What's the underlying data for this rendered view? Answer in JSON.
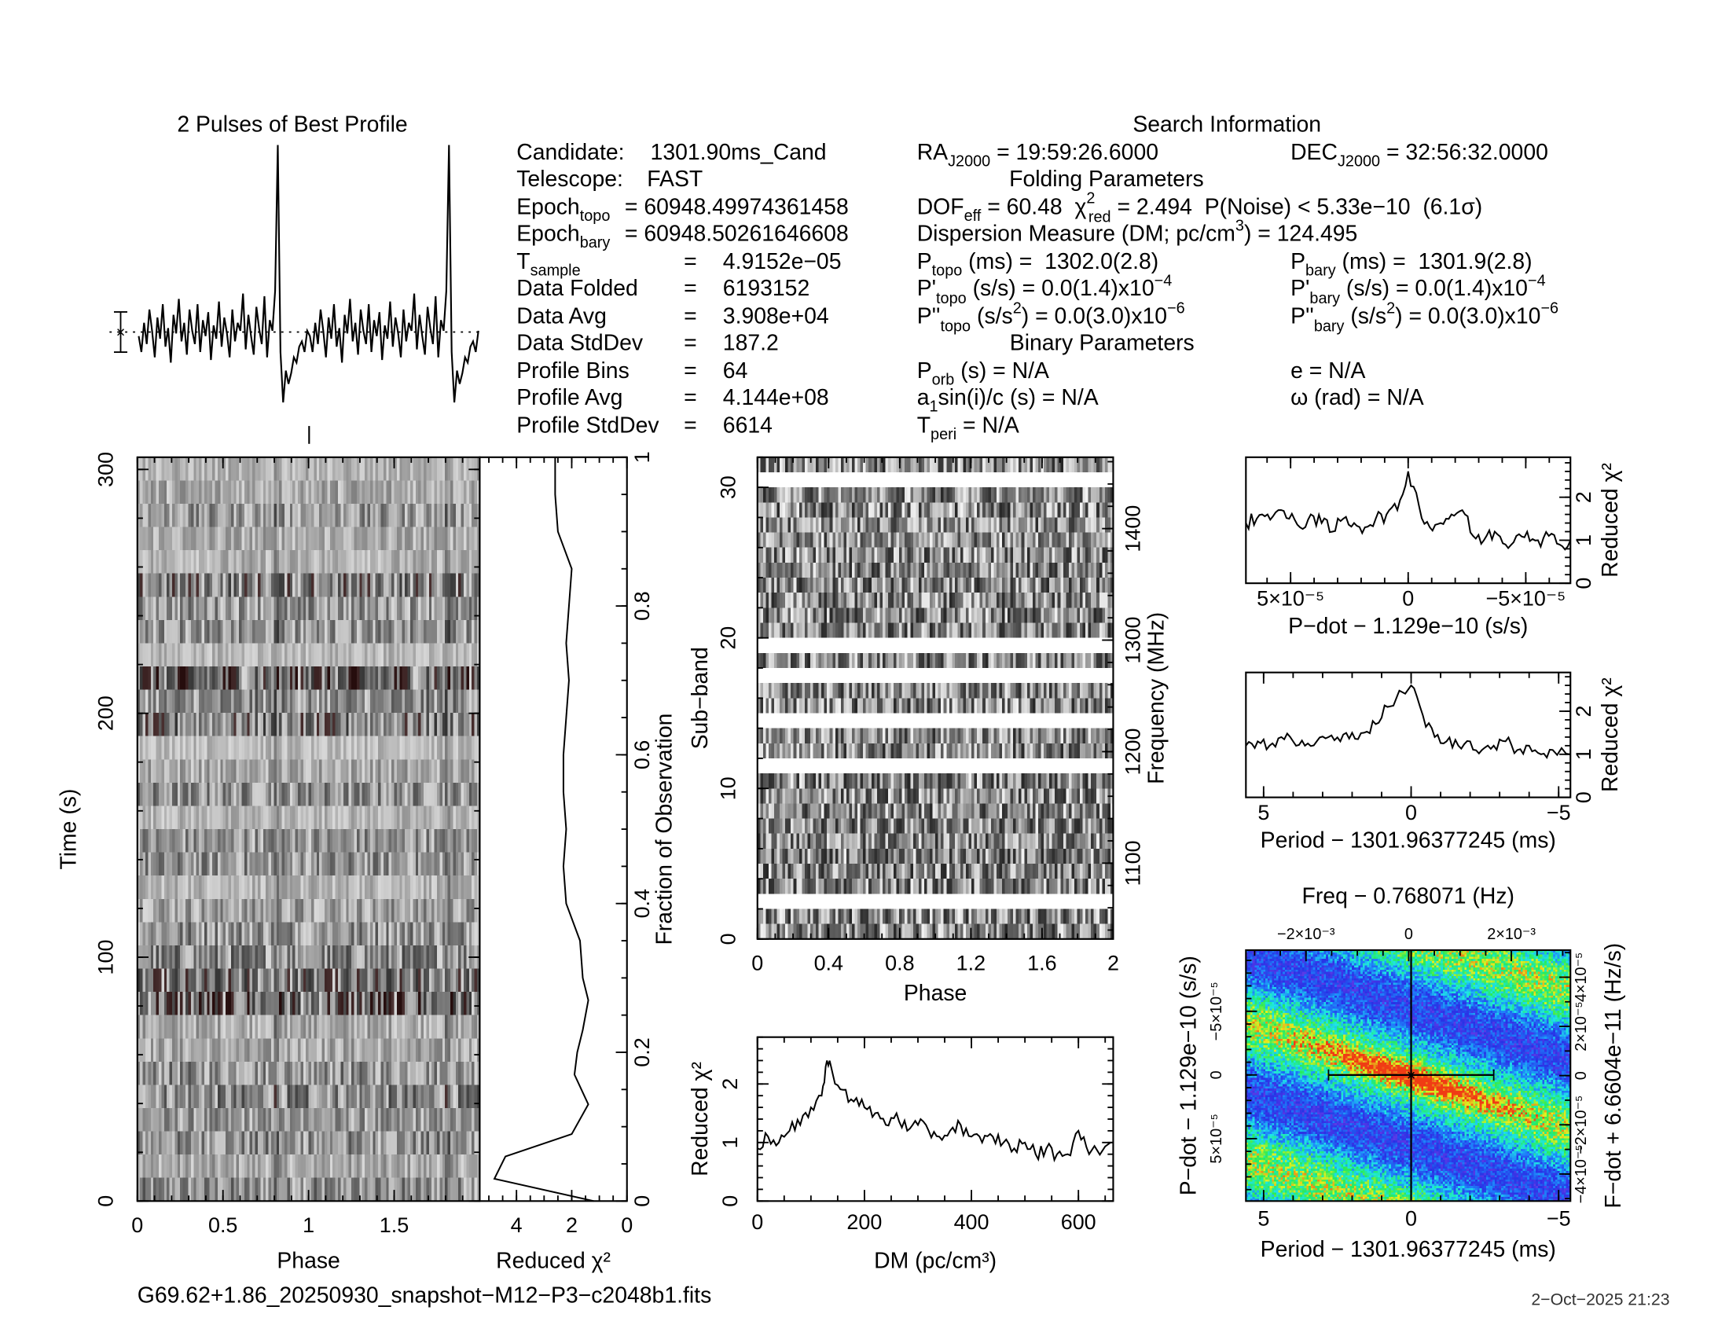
{
  "info": {
    "title": "Search Information",
    "folding_title": "Folding Parameters",
    "binary_title": "Binary Parameters",
    "col1": [
      {
        "label": "Candidate:",
        "sub": "",
        "eq": "",
        "value": "1301.90ms_Cand"
      },
      {
        "label": "Telescope:",
        "sub": "",
        "eq": "",
        "value": "FAST"
      },
      {
        "label": "Epoch",
        "sub": "topo",
        "eq": "",
        "value": "= 60948.49974361458"
      },
      {
        "label": "Epoch",
        "sub": "bary",
        "eq": "",
        "value": "= 60948.50261646608"
      },
      {
        "label": "T",
        "sub": "sample",
        "eq": "=",
        "value": "4.9152e−05"
      },
      {
        "label": "Data Folded",
        "sub": "",
        "eq": "=",
        "value": "6193152"
      },
      {
        "label": "Data Avg",
        "sub": "",
        "eq": "=",
        "value": "3.908e+04"
      },
      {
        "label": "Data StdDev",
        "sub": "",
        "eq": "=",
        "value": "187.2"
      },
      {
        "label": "Profile Bins",
        "sub": "",
        "eq": "=",
        "value": "64"
      },
      {
        "label": "Profile Avg",
        "sub": "",
        "eq": "=",
        "value": "4.144e+08"
      },
      {
        "label": "Profile StdDev",
        "sub": "",
        "eq": "=",
        "value": "6614"
      }
    ],
    "ra": {
      "label": "RA",
      "sub": "J2000",
      "value": " = 19:59:26.6000"
    },
    "dec": {
      "label": "DEC",
      "sub": "J2000",
      "value": " = 32:56:32.0000"
    },
    "dof": {
      "label": "DOF",
      "sub": "eff",
      "value": " = 60.48  ",
      "chi": "χ",
      "chi_sup": "2",
      "chi_sub": "red",
      "chi_value": " = 2.494  P(Noise) < 5.33e−10  (6.1σ)"
    },
    "dm": {
      "label": "Dispersion Measure (DM; pc/cm",
      "sup": "3",
      "value": ") = 124.495"
    },
    "p_topo": {
      "label": "P",
      "sub": "topo",
      "value": " (ms) =  1302.0(2.8)"
    },
    "p_bary": {
      "label": "P",
      "sub": "bary",
      "value": " (ms) =  1301.9(2.8)"
    },
    "pd_topo": {
      "label": "P'",
      "sub": "topo",
      "value": " (s/s) = 0.0(1.4)x10",
      "exp": "−4"
    },
    "pd_bary": {
      "label": "P'",
      "sub": "bary",
      "value": " (s/s) = 0.0(1.4)x10",
      "exp": "−4"
    },
    "pdd_topo": {
      "label": "P''",
      "sub": "topo",
      "value": " (s/s",
      "sup": "2",
      "value2": ") = 0.0(3.0)x10",
      "exp": "−6"
    },
    "pdd_bary": {
      "label": "P''",
      "sub": "bary",
      "value": " (s/s",
      "sup": "2",
      "value2": ") = 0.0(3.0)x10",
      "exp": "−6"
    },
    "porb": {
      "label": "P",
      "sub": "orb",
      "value": " (s) = N/A"
    },
    "a1": {
      "label": "a",
      "sub": "1",
      "value": "sin(i)/c (s) = N/A"
    },
    "tperi": {
      "label": "T",
      "sub": "peri",
      "value": " = N/A"
    },
    "ecc": {
      "value": "e = N/A"
    },
    "omega": {
      "value": "ω (rad) = N/A"
    }
  },
  "footer": {
    "filename": "G69.62+1.86_20250930_snapshot−M12−P3−c2048b1.fits",
    "date": "2−Oct−2025 21:23"
  },
  "colors": {
    "line": "#000000",
    "background": "#ffffff"
  },
  "chart_data": [
    {
      "id": "profile",
      "type": "line",
      "title": "2 Pulses of Best Profile",
      "xlim": [
        0,
        2
      ],
      "ylim": [
        0,
        1
      ],
      "pulses": 2,
      "values": [
        0.28,
        0.22,
        0.33,
        0.25,
        0.38,
        0.3,
        0.2,
        0.35,
        0.27,
        0.4,
        0.24,
        0.31,
        0.18,
        0.36,
        0.29,
        0.42,
        0.26,
        0.33,
        0.21,
        0.38,
        0.3,
        0.25,
        0.4,
        0.22,
        0.34,
        0.28,
        0.37,
        0.19,
        0.32,
        0.27,
        0.41,
        0.24,
        0.35,
        0.29,
        0.2,
        0.38,
        0.26,
        0.33,
        0.3,
        0.44,
        0.23,
        0.36,
        0.28,
        0.21,
        0.39,
        0.31,
        0.25,
        0.43,
        0.2,
        0.34,
        0.3,
        0.45,
        1.0,
        0.22,
        0.03,
        0.15,
        0.1,
        0.14,
        0.2,
        0.18,
        0.24,
        0.26,
        0.22,
        0.3
      ]
    },
    {
      "id": "timephase",
      "type": "heatmap",
      "xlabel": "Phase",
      "ylabel": "Time (s)",
      "xlim": [
        0,
        2
      ],
      "ylim": [
        0,
        305
      ],
      "xticks": [
        {
          "v": 0,
          "label": "0"
        },
        {
          "v": 0.5,
          "label": "0.5"
        },
        {
          "v": 1,
          "label": "1"
        },
        {
          "v": 1.5,
          "label": "1.5"
        }
      ],
      "yticks": [
        {
          "v": 0,
          "label": "0"
        },
        {
          "v": 100,
          "label": "100"
        },
        {
          "v": 200,
          "label": "200"
        },
        {
          "v": 300,
          "label": "300"
        }
      ],
      "x_minor": 0.1,
      "y_minor": 20
    },
    {
      "id": "chi2time",
      "type": "line",
      "xlabel": "Reduced χ²",
      "y2label": "Fraction of Observation",
      "xlim": [
        5.33,
        0
      ],
      "ylim": [
        0,
        1
      ],
      "xticks": [
        {
          "v": 4,
          "label": "4"
        },
        {
          "v": 2,
          "label": "2"
        },
        {
          "v": 0,
          "label": "0"
        }
      ],
      "y2ticks": [
        {
          "v": 0,
          "label": "0"
        },
        {
          "v": 0.2,
          "label": "0.2"
        },
        {
          "v": 0.4,
          "label": "0.4"
        },
        {
          "v": 0.6,
          "label": "0.6"
        },
        {
          "v": 0.8,
          "label": "0.8"
        },
        {
          "v": 1,
          "label": "1"
        }
      ],
      "x_minor": 0.5,
      "y_minor": 0.05,
      "x": [
        1.2,
        4.8,
        4.4,
        2.0,
        1.4,
        1.9,
        1.8,
        1.6,
        1.4,
        1.6,
        1.7,
        2.2,
        2.3,
        2.2,
        2.3,
        2.3,
        2.2,
        2.1,
        2.2,
        2.1,
        2.0,
        2.5,
        2.6,
        2.6
      ],
      "y": [
        0.0,
        0.03,
        0.06,
        0.09,
        0.13,
        0.17,
        0.2,
        0.23,
        0.27,
        0.3,
        0.35,
        0.4,
        0.45,
        0.5,
        0.55,
        0.6,
        0.65,
        0.7,
        0.75,
        0.8,
        0.85,
        0.9,
        0.95,
        1.0
      ]
    },
    {
      "id": "subband",
      "type": "heatmap",
      "xlabel": "Phase",
      "ylabel": "Sub−band",
      "y2label": "Frequency (MHz)",
      "xlim": [
        0,
        2
      ],
      "ylim": [
        0,
        32
      ],
      "y2lim": [
        1032,
        1464
      ],
      "xticks": [
        {
          "v": 0,
          "label": "0"
        },
        {
          "v": 0.4,
          "label": "0.4"
        },
        {
          "v": 0.8,
          "label": "0.8"
        },
        {
          "v": 1.2,
          "label": "1.2"
        },
        {
          "v": 1.6,
          "label": "1.6"
        },
        {
          "v": 2,
          "label": "2"
        }
      ],
      "yticks": [
        {
          "v": 0,
          "label": "0"
        },
        {
          "v": 10,
          "label": "10"
        },
        {
          "v": 20,
          "label": "20"
        },
        {
          "v": 30,
          "label": "30"
        }
      ],
      "y2ticks": [
        {
          "v": 1100,
          "label": "1100"
        },
        {
          "v": 1200,
          "label": "1200"
        },
        {
          "v": 1300,
          "label": "1300"
        },
        {
          "v": 1400,
          "label": "1400"
        }
      ],
      "x_minor": 0.1,
      "y_minor": 2,
      "y2_minor": 20
    },
    {
      "id": "dm",
      "type": "line",
      "xlabel": "DM (pc/cm³)",
      "ylabel": "Reduced χ²",
      "xlim": [
        0,
        665
      ],
      "ylim": [
        0,
        2.8
      ],
      "xticks": [
        {
          "v": 0,
          "label": "0"
        },
        {
          "v": 200,
          "label": "200"
        },
        {
          "v": 400,
          "label": "400"
        },
        {
          "v": 600,
          "label": "600"
        }
      ],
      "yticks": [
        {
          "v": 0,
          "label": "0"
        },
        {
          "v": 1,
          "label": "1"
        },
        {
          "v": 2,
          "label": "2"
        }
      ],
      "x_minor": 50,
      "y_minor": 0.2,
      "x": [
        0,
        20,
        40,
        60,
        80,
        100,
        120,
        130,
        140,
        160,
        180,
        200,
        220,
        240,
        260,
        280,
        300,
        320,
        340,
        360,
        380,
        400,
        420,
        440,
        460,
        480,
        500,
        520,
        540,
        560,
        580,
        600,
        620,
        660
      ],
      "y": [
        0.9,
        1.1,
        1.0,
        1.2,
        1.3,
        1.6,
        1.8,
        2.4,
        2.2,
        1.9,
        1.7,
        1.6,
        1.5,
        1.3,
        1.5,
        1.2,
        1.3,
        1.2,
        1.1,
        1.2,
        1.3,
        1.1,
        1.0,
        1.1,
        1.0,
        0.9,
        1.0,
        0.8,
        0.9,
        0.8,
        0.8,
        1.2,
        0.8,
        1.0
      ]
    },
    {
      "id": "pdot",
      "type": "line",
      "xlabel": "P−dot − 1.129e−10 (s/s)",
      "y2label": "Reduced χ²",
      "xlim": [
        6.9e-05,
        -6.9e-05
      ],
      "ylim": [
        0,
        2.93
      ],
      "xticks": [
        {
          "v": 5e-05,
          "label": "5×10⁻⁵"
        },
        {
          "v": 0,
          "label": "0"
        },
        {
          "v": -5e-05,
          "label": "−5×10⁻⁵"
        }
      ],
      "y2ticks": [
        {
          "v": 0,
          "label": "0"
        },
        {
          "v": 1,
          "label": "1"
        },
        {
          "v": 2,
          "label": "2"
        }
      ],
      "x_minor": 1e-05,
      "y_minor": 0.2,
      "x": [
        6.9e-05,
        6.44e-05,
        5.98e-05,
        5.52e-05,
        5.06e-05,
        4.6e-05,
        4.14e-05,
        3.68e-05,
        3.22e-05,
        2.76e-05,
        2.3e-05,
        1.84e-05,
        1.38e-05,
        9.2e-06,
        4.6e-06,
        0,
        -4.6e-06,
        -9.2e-06,
        -1.38e-05,
        -1.84e-05,
        -2.3e-05,
        -2.76e-05,
        -3.22e-05,
        -3.68e-05,
        -4.14e-05,
        -4.6e-05,
        -5.06e-05,
        -5.52e-05,
        -5.98e-05,
        -6.44e-05,
        -6.9e-05
      ],
      "y": [
        1.4,
        1.5,
        1.6,
        1.7,
        1.5,
        1.3,
        1.6,
        1.4,
        1.2,
        1.5,
        1.4,
        1.3,
        1.5,
        1.6,
        1.7,
        2.6,
        1.8,
        1.3,
        1.4,
        1.6,
        1.7,
        1.1,
        1.0,
        1.2,
        0.9,
        1.1,
        1.2,
        1.0,
        1.1,
        0.9,
        1.0
      ]
    },
    {
      "id": "period",
      "type": "line",
      "xlabel": "Period − 1301.96377245 (ms)",
      "y2label": "Reduced χ²",
      "xlim": [
        5.6,
        -5.4
      ],
      "ylim": [
        0,
        2.9
      ],
      "xticks": [
        {
          "v": 5,
          "label": "5"
        },
        {
          "v": 0,
          "label": "0"
        },
        {
          "v": -5,
          "label": "−5"
        }
      ],
      "y2ticks": [
        {
          "v": 0,
          "label": "0"
        },
        {
          "v": 1,
          "label": "1"
        },
        {
          "v": 2,
          "label": "2"
        }
      ],
      "x_minor": 1,
      "y_minor": 0.2,
      "x": [
        5.6,
        5.2,
        4.8,
        4.4,
        4.0,
        3.6,
        3.2,
        2.8,
        2.4,
        2.0,
        1.6,
        1.2,
        0.8,
        0.0,
        -0.4,
        -0.8,
        -1.2,
        -1.6,
        -2.0,
        -2.4,
        -2.8,
        -3.2,
        -3.6,
        -4.0,
        -4.4,
        -4.8,
        -5.4
      ],
      "y": [
        1.2,
        1.3,
        1.2,
        1.4,
        1.3,
        1.2,
        1.3,
        1.4,
        1.3,
        1.5,
        1.5,
        1.7,
        2.1,
        2.6,
        1.9,
        1.4,
        1.3,
        1.2,
        1.3,
        1.1,
        1.2,
        1.3,
        1.1,
        1.2,
        1.0,
        1.1,
        1.0
      ]
    },
    {
      "id": "ppdot",
      "type": "heatmap",
      "xlabel": "Period − 1301.96377245 (ms)",
      "ylabel": "P−dot − 1.129e−10 (s/s)",
      "x2label": "Freq − 0.768071 (Hz)",
      "y2label": "F−dot + 6.6604e−11 (Hz/s)",
      "xlim": [
        5.6,
        -5.4
      ],
      "ylim": [
        9.9e-05,
        -9.8e-05
      ],
      "x2lim": [
        -0.00317,
        0.00315
      ],
      "y2lim": [
        -5.1e-05,
        5.1e-05
      ],
      "xticks": [
        {
          "v": 5,
          "label": "5"
        },
        {
          "v": 0,
          "label": "0"
        },
        {
          "v": -5,
          "label": "−5"
        }
      ],
      "yticks": [
        {
          "v": 5e-05,
          "label": "5×10⁻⁵"
        },
        {
          "v": 0,
          "label": "0"
        },
        {
          "v": -5e-05,
          "label": "−5×10⁻⁵"
        }
      ],
      "x2ticks": [
        {
          "v": -0.002,
          "label": "−2×10⁻³"
        },
        {
          "v": 0,
          "label": "0"
        },
        {
          "v": 0.002,
          "label": "2×10⁻³"
        }
      ],
      "y2ticks": [
        {
          "v": -4e-05,
          "label": "−4×10⁻⁵"
        },
        {
          "v": -2e-05,
          "label": "−2×10⁻⁵"
        },
        {
          "v": 0,
          "label": "0"
        },
        {
          "v": 2e-05,
          "label": "2×10⁻⁵"
        },
        {
          "v": 4e-05,
          "label": "4×10⁻⁵"
        }
      ],
      "x_minor": 1,
      "y_minor": 1e-05,
      "x2_minor": 0.0005,
      "y2_minor": 1e-05,
      "best": {
        "period": 0,
        "pdot": 0,
        "period_err": 2.8
      }
    }
  ]
}
